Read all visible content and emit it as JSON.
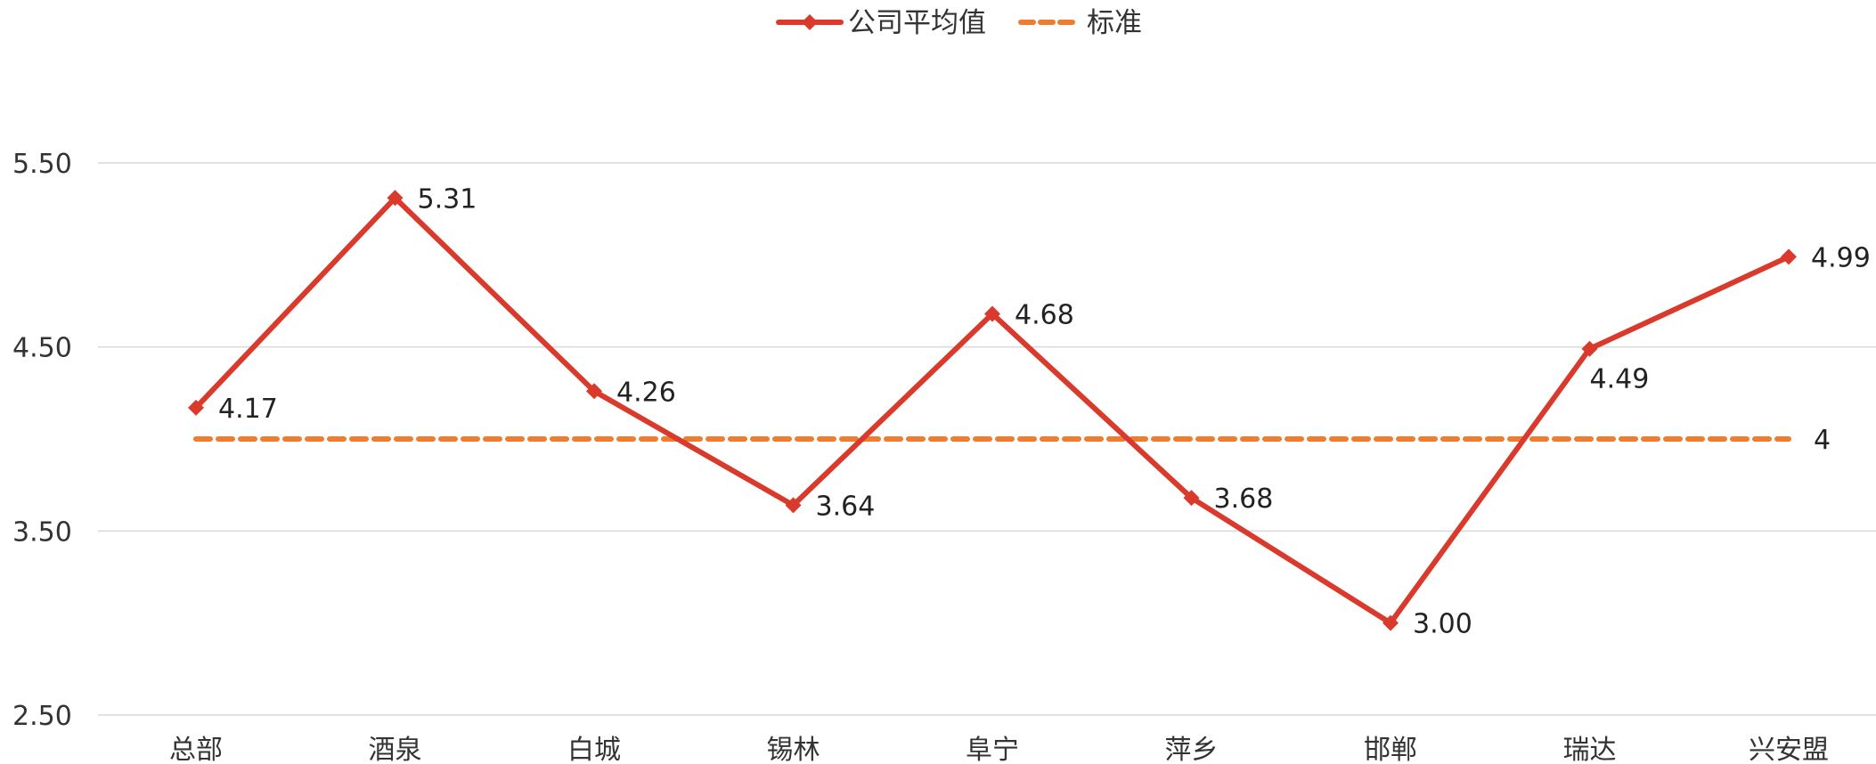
{
  "chart_data": {
    "type": "line",
    "categories": [
      "总部",
      "酒泉",
      "白城",
      "锡林",
      "阜宁",
      "萍乡",
      "邯郸",
      "瑞达",
      "兴安盟"
    ],
    "series": [
      {
        "name": "公司平均值",
        "values": [
          4.17,
          5.31,
          4.26,
          3.64,
          4.68,
          3.68,
          3.0,
          4.49,
          4.99
        ],
        "labels": [
          "4.17",
          "5.31",
          "4.26",
          "3.64",
          "4.68",
          "3.68",
          "3.00",
          "4.49",
          "4.99"
        ],
        "color": "#D93A2B",
        "marker": "diamond",
        "line_style": "solid"
      },
      {
        "name": "标准",
        "values": [
          4,
          4,
          4,
          4,
          4,
          4,
          4,
          4,
          4
        ],
        "end_label": "4",
        "color": "#ED7D31",
        "line_style": "dashed"
      }
    ],
    "ylim": [
      2.5,
      5.5
    ],
    "yticks": [
      "2.50",
      "3.50",
      "4.50",
      "5.50"
    ],
    "ytick_values": [
      2.5,
      3.5,
      4.5,
      5.5
    ],
    "grid": "horizontal",
    "legend_position": "top-center",
    "title": "",
    "xlabel": "",
    "ylabel": "",
    "gridline_color": "#D9D9D9"
  }
}
